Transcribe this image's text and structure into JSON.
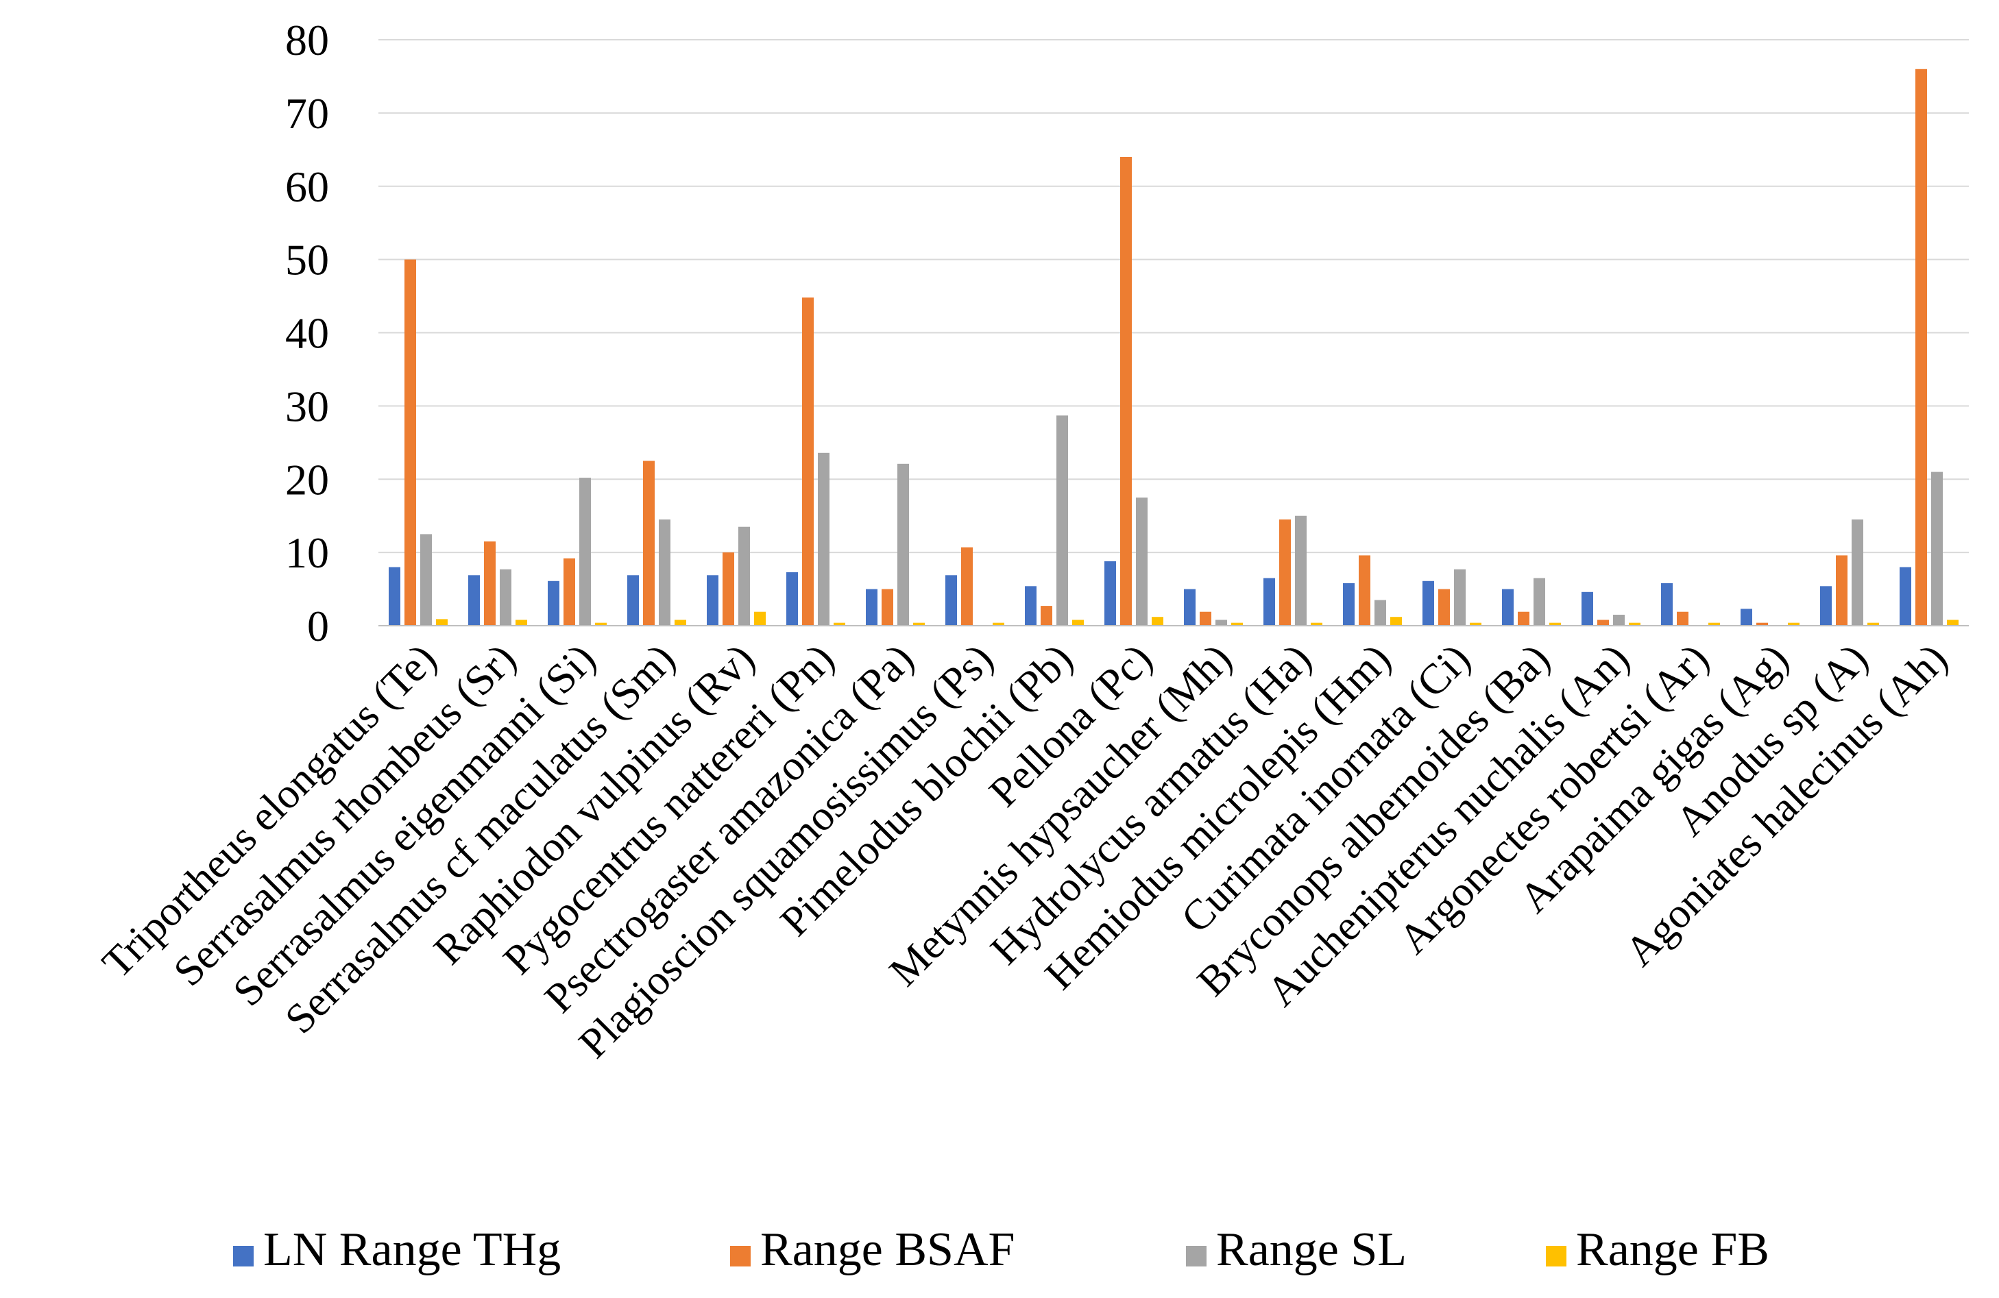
{
  "chart_data": {
    "type": "bar",
    "title": "",
    "xlabel": "",
    "ylabel": "",
    "ylim": [
      0,
      80
    ],
    "yticks": [
      0,
      10,
      20,
      30,
      40,
      50,
      60,
      70,
      80
    ],
    "grid": true,
    "legend_position": "bottom",
    "categories": [
      "Triportheus elongatus (Te)",
      "Serrasalmus rhombeus (Sr)",
      "Serrasalmus eigenmanni (Si)",
      "Serrasalmus cf maculatus (Sm)",
      "Raphiodon vulpinus (Rv)",
      "Pygocentrus nattereri (Pn)",
      "Psectrogaster amazonica (Pa)",
      "Plagioscion squamosissimus (Ps)",
      "Pimelodus blochii (Pb)",
      "Pellona  (Pc)",
      "Metynnis hypsaucher (Mh)",
      "Hydrolycus armatus (Ha)",
      "Hemiodus microlepis (Hm)",
      "Curimata inornata (Ci)",
      "Bryconops albernoides (Ba)",
      "Auchenipterus nuchalis (An)",
      "Argonectes robertsi (Ar)",
      "Arapaima gigas (Ag)",
      "Anodus sp (A)",
      "Agoniates halecinus (Ah)"
    ],
    "series": [
      {
        "name": "LN Range THg",
        "color": "#4472c4",
        "values": [
          8.0,
          6.9,
          6.1,
          6.9,
          6.9,
          7.3,
          5.0,
          6.9,
          5.4,
          8.8,
          5.0,
          6.5,
          5.8,
          6.1,
          5.0,
          4.6,
          5.8,
          2.3,
          5.4,
          8.0
        ]
      },
      {
        "name": "Range BSAF",
        "color": "#ed7d31",
        "values": [
          50.0,
          11.5,
          9.2,
          22.5,
          10.0,
          44.8,
          5.0,
          10.7,
          2.7,
          64.0,
          1.9,
          14.5,
          9.6,
          5.0,
          1.9,
          0.8,
          1.9,
          0.4,
          9.6,
          76.0
        ]
      },
      {
        "name": "Range SL",
        "color": "#a5a5a5",
        "values": [
          12.5,
          7.7,
          20.2,
          14.5,
          13.5,
          23.6,
          22.1,
          0.0,
          28.7,
          17.5,
          0.8,
          15.0,
          3.5,
          7.7,
          6.5,
          1.5,
          0.0,
          0.0,
          14.5,
          21.0
        ]
      },
      {
        "name": "Range FB",
        "color": "#ffc000",
        "values": [
          0.9,
          0.8,
          0.4,
          0.8,
          1.9,
          0.4,
          0.4,
          0.4,
          0.8,
          1.2,
          0.4,
          0.4,
          1.2,
          0.4,
          0.4,
          0.4,
          0.4,
          0.4,
          0.4,
          0.8
        ]
      }
    ]
  }
}
